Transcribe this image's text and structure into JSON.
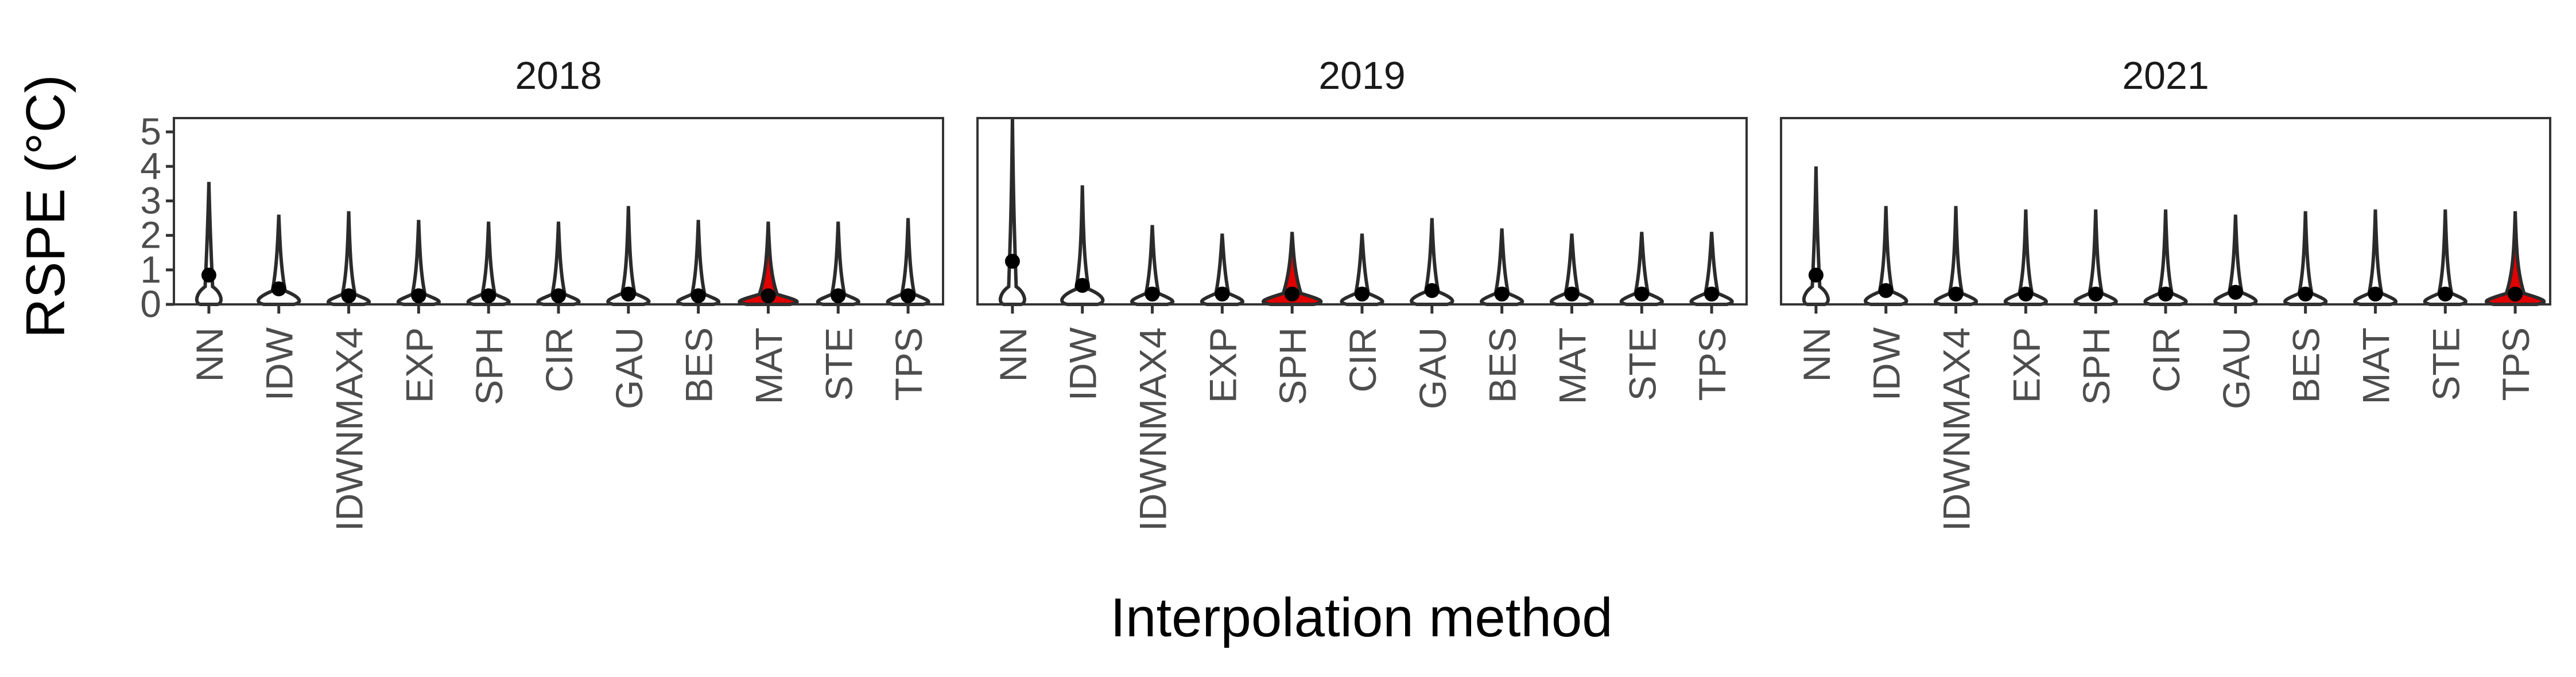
{
  "chart_data": {
    "type": "violin",
    "xlabel": "Interpolation method",
    "ylabel": "RSPE (°C)",
    "ylim": [
      0,
      5.4
    ],
    "yticks": [
      0,
      1,
      2,
      3,
      4,
      5
    ],
    "grid": false,
    "categories": [
      "NN",
      "IDW",
      "IDWNMAX4",
      "EXP",
      "SPH",
      "CIR",
      "GAU",
      "BES",
      "MAT",
      "STE",
      "TPS"
    ],
    "colors": {
      "violin_fill": "#ffffff",
      "violin_stroke": "#2b2b2b",
      "best": "#e00000",
      "point": "#000000"
    },
    "panels": [
      {
        "title": "2018",
        "best": "MAT",
        "max": [
          3.55,
          2.6,
          2.7,
          2.45,
          2.4,
          2.4,
          2.85,
          2.45,
          2.4,
          2.4,
          2.5
        ],
        "mean": [
          0.85,
          0.45,
          0.25,
          0.25,
          0.25,
          0.25,
          0.3,
          0.25,
          0.25,
          0.25,
          0.25
        ]
      },
      {
        "title": "2019",
        "best": "SPH",
        "max": [
          5.4,
          3.45,
          2.3,
          2.05,
          2.1,
          2.05,
          2.5,
          2.2,
          2.05,
          2.1,
          2.1
        ],
        "mean": [
          1.25,
          0.55,
          0.3,
          0.3,
          0.3,
          0.3,
          0.4,
          0.3,
          0.3,
          0.3,
          0.3
        ]
      },
      {
        "title": "2021",
        "best": "TPS",
        "max": [
          4.0,
          2.85,
          2.85,
          2.75,
          2.75,
          2.75,
          2.6,
          2.7,
          2.75,
          2.75,
          2.7
        ],
        "mean": [
          0.85,
          0.4,
          0.3,
          0.3,
          0.3,
          0.3,
          0.35,
          0.3,
          0.3,
          0.3,
          0.3
        ]
      }
    ]
  }
}
